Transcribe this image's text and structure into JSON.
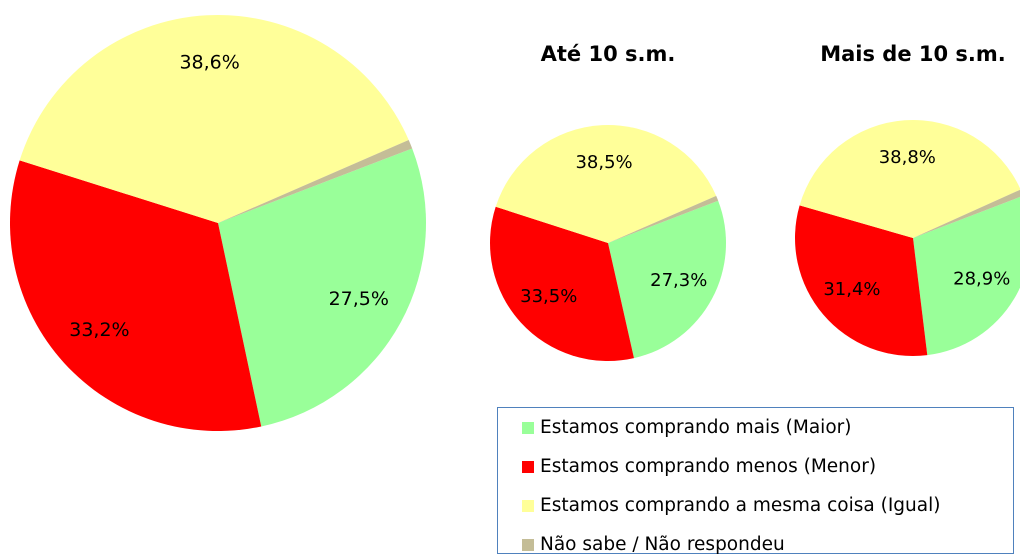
{
  "chart_data": [
    {
      "type": "pie",
      "categories": [
        "Estamos comprando mais (Maior)",
        "Estamos comprando menos (Menor)",
        "Estamos comprando a mesma coisa (Igual)",
        "Não sabe / Não respondeu"
      ],
      "colors": [
        "#99ff99",
        "#ff0000",
        "#ffff99",
        "#c4bd97"
      ],
      "values": [
        27.5,
        33.2,
        38.6,
        0.7
      ],
      "value_labels": [
        "27,5%",
        "33,2%",
        "38,6%",
        null
      ]
    },
    {
      "type": "pie",
      "title": "Até 10 s.m.",
      "values": [
        27.3,
        33.5,
        38.5,
        0.7
      ],
      "value_labels": [
        "27,3%",
        "33,5%",
        "38,5%",
        null
      ]
    },
    {
      "type": "pie",
      "title": "Mais de 10 s.m.",
      "values": [
        28.9,
        31.4,
        38.8,
        0.9
      ],
      "value_labels": [
        "28,9%",
        "31,4%",
        "38,8%",
        null
      ]
    }
  ]
}
